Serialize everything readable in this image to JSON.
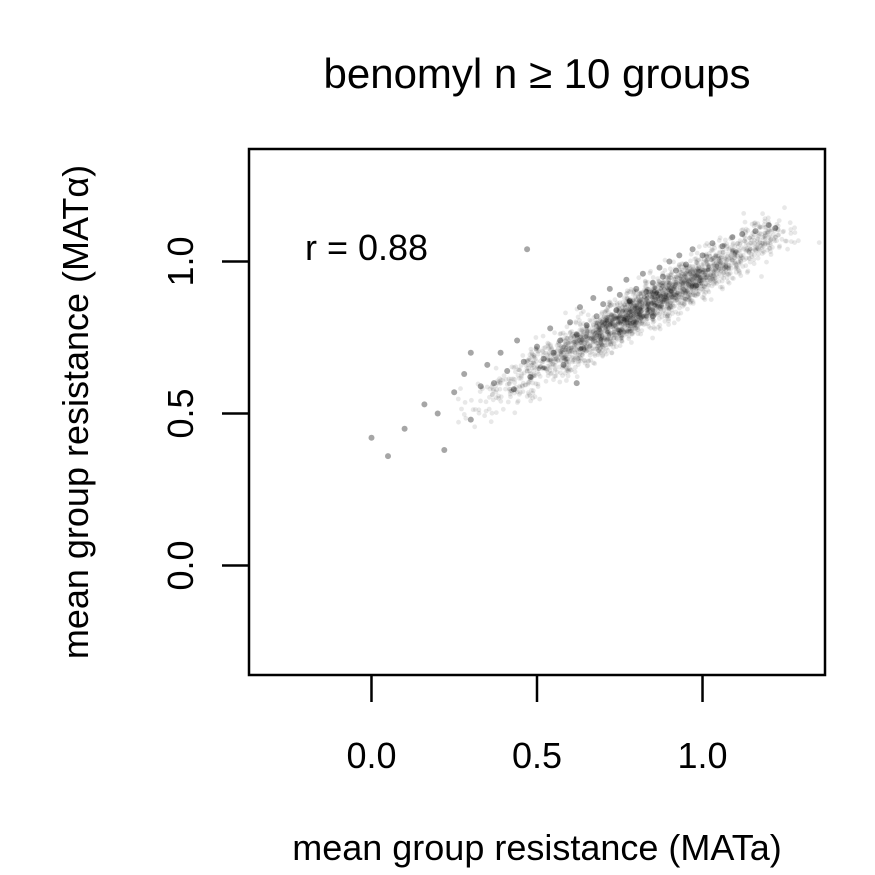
{
  "chart_data": {
    "type": "scatter",
    "title": "benomyl n ≥ 10 groups",
    "xlabel": "mean group resistance (MATa)",
    "ylabel": "mean group resistance (MATα)",
    "xlim": [
      -0.37,
      1.37
    ],
    "ylim": [
      -0.36,
      1.37
    ],
    "x_ticks": [
      0.0,
      0.5,
      1.0
    ],
    "x_tick_labels": [
      "0.0",
      "0.5",
      "1.0"
    ],
    "y_ticks": [
      0.0,
      0.5,
      1.0
    ],
    "y_tick_labels": [
      "0.0",
      "0.5",
      "1.0"
    ],
    "grid": false,
    "point_color": "#000000",
    "annotation": "r = 0.88",
    "correlation_r": 0.88,
    "density_description": "dense cloud along the diagonal; points mainly from x 0.35 to 1.25, y 0.55 to 1.12",
    "points": [
      [
        0.0,
        0.42
      ],
      [
        0.05,
        0.36
      ],
      [
        0.1,
        0.45
      ],
      [
        0.16,
        0.53
      ],
      [
        0.2,
        0.5
      ],
      [
        0.22,
        0.38
      ],
      [
        0.25,
        0.57
      ],
      [
        0.28,
        0.63
      ],
      [
        0.3,
        0.48
      ],
      [
        0.33,
        0.59
      ],
      [
        0.35,
        0.66
      ],
      [
        0.37,
        0.6
      ],
      [
        0.39,
        0.7
      ],
      [
        0.41,
        0.64
      ],
      [
        0.43,
        0.58
      ],
      [
        0.44,
        0.74
      ],
      [
        0.46,
        0.67
      ],
      [
        0.48,
        0.62
      ],
      [
        0.5,
        0.72
      ],
      [
        0.52,
        0.68
      ],
      [
        0.54,
        0.78
      ],
      [
        0.55,
        0.7
      ],
      [
        0.57,
        0.74
      ],
      [
        0.58,
        0.66
      ],
      [
        0.6,
        0.8
      ],
      [
        0.62,
        0.76
      ],
      [
        0.63,
        0.85
      ],
      [
        0.65,
        0.79
      ],
      [
        0.67,
        0.88
      ],
      [
        0.68,
        0.82
      ],
      [
        0.7,
        0.86
      ],
      [
        0.72,
        0.91
      ],
      [
        0.74,
        0.84
      ],
      [
        0.75,
        0.89
      ],
      [
        0.77,
        0.94
      ],
      [
        0.78,
        0.87
      ],
      [
        0.8,
        0.91
      ],
      [
        0.82,
        0.96
      ],
      [
        0.83,
        0.9
      ],
      [
        0.85,
        0.93
      ],
      [
        0.87,
        0.98
      ],
      [
        0.88,
        0.95
      ],
      [
        0.9,
        1.0
      ],
      [
        0.92,
        0.97
      ],
      [
        0.93,
        1.02
      ],
      [
        0.95,
        0.99
      ],
      [
        0.97,
        1.04
      ],
      [
        1.0,
        1.02
      ],
      [
        1.03,
        1.06
      ],
      [
        1.06,
        1.05
      ],
      [
        1.09,
        1.08
      ],
      [
        1.12,
        1.09
      ],
      [
        1.16,
        1.1
      ],
      [
        1.2,
        1.12
      ],
      [
        1.22,
        1.11
      ],
      [
        0.47,
        1.04
      ],
      [
        0.3,
        0.7
      ],
      [
        0.62,
        0.6
      ],
      [
        0.85,
        0.82
      ],
      [
        0.98,
        0.92
      ]
    ]
  }
}
